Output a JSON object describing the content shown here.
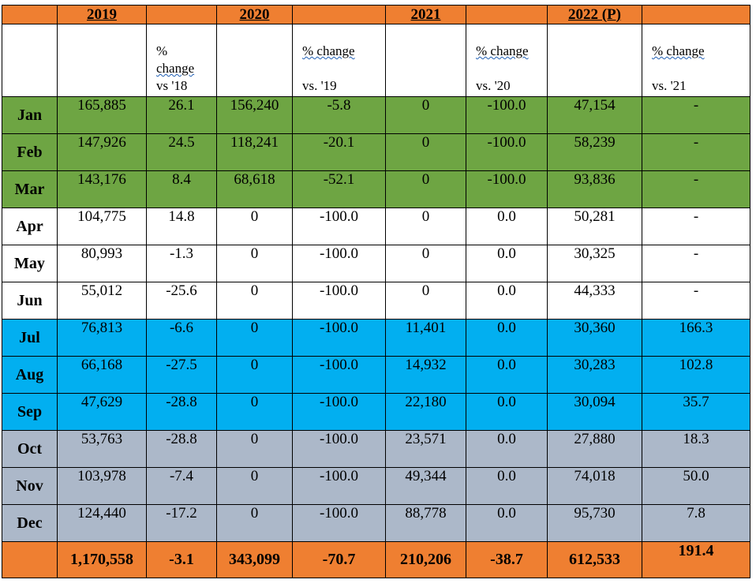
{
  "years": {
    "y2019": "2019",
    "y2020": "2020",
    "y2021": "2021",
    "y2022": "2022 (P)"
  },
  "subheaders": {
    "pct_2019_line1": "%",
    "pct_2019_line2": "change",
    "pct_2019_line3": "vs '18",
    "pct_2020_line1": "% change",
    "pct_2020_line2": "vs. '19",
    "pct_2021_line1": "% change",
    "pct_2021_line2": "vs. '20",
    "pct_2022_line1": "% change",
    "pct_2022_line2": "vs. '21"
  },
  "months": [
    {
      "month": "Jan",
      "v2019": "165,885",
      "p2019": "26.1",
      "v2020": "156,240",
      "p2020": "-5.8",
      "v2021": "0",
      "p2021": "-100.0",
      "v2022": "47,154",
      "p2022": "-"
    },
    {
      "month": "Feb",
      "v2019": "147,926",
      "p2019": "24.5",
      "v2020": "118,241",
      "p2020": "-20.1",
      "v2021": "0",
      "p2021": "-100.0",
      "v2022": "58,239",
      "p2022": "-"
    },
    {
      "month": "Mar",
      "v2019": "143,176",
      "p2019": "8.4",
      "v2020": "68,618",
      "p2020": "-52.1",
      "v2021": "0",
      "p2021": "-100.0",
      "v2022": "93,836",
      "p2022": "-"
    },
    {
      "month": "Apr",
      "v2019": "104,775",
      "p2019": "14.8",
      "v2020": "0",
      "p2020": "-100.0",
      "v2021": "0",
      "p2021": "0.0",
      "v2022": "50,281",
      "p2022": "-"
    },
    {
      "month": "May",
      "v2019": "80,993",
      "p2019": "-1.3",
      "v2020": "0",
      "p2020": "-100.0",
      "v2021": "0",
      "p2021": "0.0",
      "v2022": "30,325",
      "p2022": "-"
    },
    {
      "month": "Jun",
      "v2019": "55,012",
      "p2019": "-25.6",
      "v2020": "0",
      "p2020": "-100.0",
      "v2021": "0",
      "p2021": "0.0",
      "v2022": "44,333",
      "p2022": "-"
    },
    {
      "month": "Jul",
      "v2019": "76,813",
      "p2019": "-6.6",
      "v2020": "0",
      "p2020": "-100.0",
      "v2021": "11,401",
      "p2021": "0.0",
      "v2022": "30,360",
      "p2022": "166.3"
    },
    {
      "month": "Aug",
      "v2019": "66,168",
      "p2019": "-27.5",
      "v2020": "0",
      "p2020": "-100.0",
      "v2021": "14,932",
      "p2021": "0.0",
      "v2022": "30,283",
      "p2022": "102.8"
    },
    {
      "month": "Sep",
      "v2019": "47,629",
      "p2019": "-28.8",
      "v2020": "0",
      "p2020": "-100.0",
      "v2021": "22,180",
      "p2021": "0.0",
      "v2022": "30,094",
      "p2022": "35.7"
    },
    {
      "month": "Oct",
      "v2019": "53,763",
      "p2019": "-28.8",
      "v2020": "0",
      "p2020": "-100.0",
      "v2021": "23,571",
      "p2021": "0.0",
      "v2022": "27,880",
      "p2022": "18.3"
    },
    {
      "month": "Nov",
      "v2019": "103,978",
      "p2019": "-7.4",
      "v2020": "0",
      "p2020": "-100.0",
      "v2021": "49,344",
      "p2021": "0.0",
      "v2022": "74,018",
      "p2022": "50.0"
    },
    {
      "month": "Dec",
      "v2019": "124,440",
      "p2019": "-17.2",
      "v2020": "0",
      "p2020": "-100.0",
      "v2021": "88,778",
      "p2021": "0.0",
      "v2022": "95,730",
      "p2022": "7.8"
    }
  ],
  "totals": {
    "v2019": "1,170,558",
    "p2019": "-3.1",
    "v2020": "343,099",
    "p2020": "-70.7",
    "v2021": "210,206",
    "p2021": "-38.7",
    "v2022": "612,533",
    "p2022": "191.4"
  },
  "colors": {
    "header_orange": "#ef7f31",
    "q1_green": "#6ea543",
    "q2_white": "#ffffff",
    "q3_blue": "#02aff0",
    "q4_grey": "#acb8c9"
  }
}
